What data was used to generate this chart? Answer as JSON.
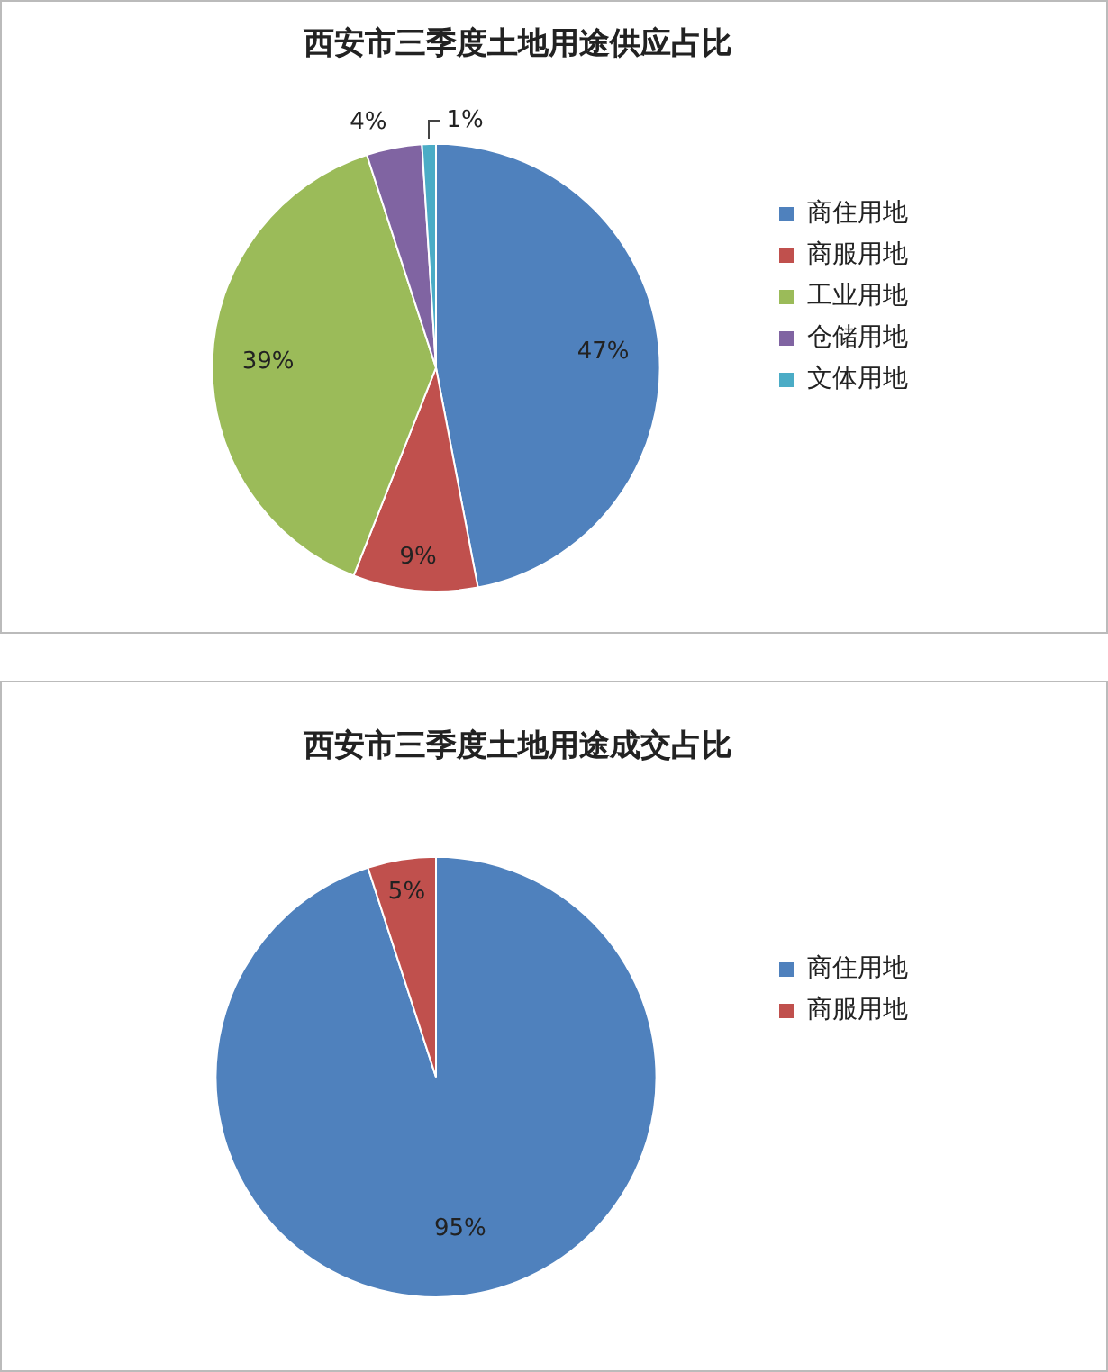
{
  "chart_data": [
    {
      "type": "pie",
      "title": "西安市三季度土地用途供应占比",
      "categories": [
        "商住用地",
        "商服用地",
        "工业用地",
        "仓储用地",
        "文体用地"
      ],
      "values": [
        47,
        9,
        39,
        4,
        1
      ],
      "colors": [
        "#4f81bd",
        "#c0504d",
        "#9bbb59",
        "#8064a2",
        "#4bacc6"
      ],
      "value_labels": [
        "47%",
        "9%",
        "39%",
        "4%",
        "1%"
      ],
      "legend": "right"
    },
    {
      "type": "pie",
      "title": "西安市三季度土地用途成交占比",
      "categories": [
        "商住用地",
        "商服用地"
      ],
      "values": [
        95,
        5
      ],
      "colors": [
        "#4f81bd",
        "#c0504d"
      ],
      "value_labels": [
        "95%",
        "5%"
      ],
      "legend": "right"
    }
  ]
}
